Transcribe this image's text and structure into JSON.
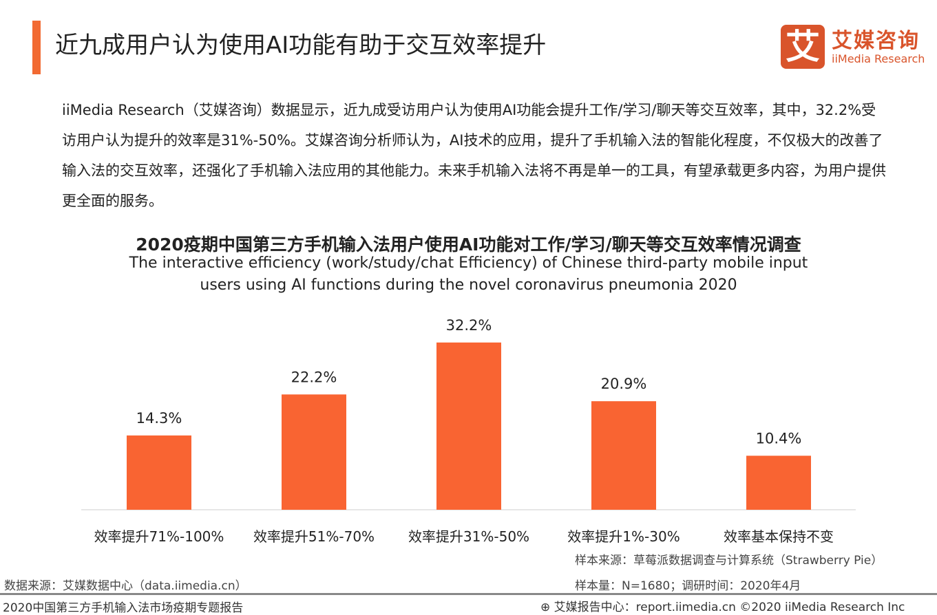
{
  "header": {
    "title": "近九成用户认为使用AI功能有助于交互效率提升",
    "logo_mark": "艾",
    "logo_cn": "艾媒咨询",
    "logo_en": "iiMedia Research",
    "accent_color": "#f26a32"
  },
  "summary": "iiMedia Research（艾媒咨询）数据显示，近九成受访用户认为使用AI功能会提升工作/学习/聊天等交互效率，其中，32.2%受访用户认为提升的效率是31%-50%。艾媒咨询分析师认为，AI技术的应用，提升了手机输入法的智能化程度，不仅极大的改善了输入法的交互效率，还强化了手机输入法应用的其他能力。未来手机输入法将不再是单一的工具，有望承载更多内容，为用户提供更全面的服务。",
  "chart_data": {
    "type": "bar",
    "title": "2020疫期中国第三方手机输入法用户使用AI功能对工作/学习/聊天等交互效率情况调查",
    "subtitle_line1": "The interactive efficiency (work/study/chat Efficiency) of Chinese third-party mobile input",
    "subtitle_line2": "users using AI functions during  the novel coronavirus pneumonia 2020",
    "categories": [
      "效率提升71%-100%",
      "效率提升51%-70%",
      "效率提升31%-50%",
      "效率提升1%-30%",
      "效率基本保持不变"
    ],
    "values": [
      14.3,
      22.2,
      32.2,
      20.9,
      10.4
    ],
    "data_labels": [
      "14.3%",
      "22.2%",
      "32.2%",
      "20.9%",
      "10.4%"
    ],
    "unit": "%",
    "bar_color": "#f96432",
    "grid": false,
    "legend": "none"
  },
  "footer": {
    "sample_source": "样本来源：草莓派数据调查与计算系统（Strawberry  Pie）",
    "data_source": "数据来源：艾媒数据中心（data.iimedia.cn）",
    "sample_size": "样本量：N=1680；调研时间：2020年4月",
    "report_name": "2020中国第三方手机输入法市场疫期专题报告",
    "report_center": "艾媒报告中心：report.iimedia.cn   ©2020  iiMedia Research  Inc"
  }
}
